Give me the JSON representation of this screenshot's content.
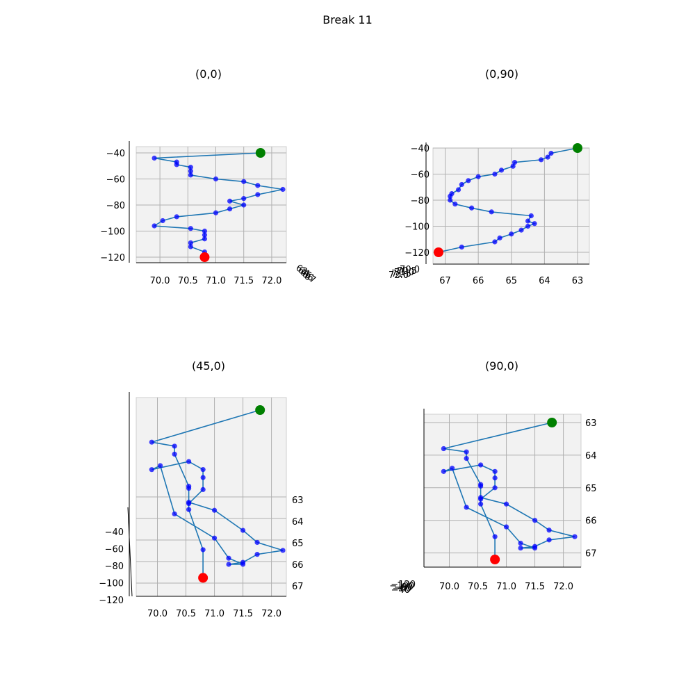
{
  "figure": {
    "title": "Break 11"
  },
  "chart_data": {
    "type": "scatter",
    "plot_kind": "3d line with point markers, shown from four view angles",
    "points": [
      {
        "x": 71.8,
        "y": 63.0,
        "z": -40
      },
      {
        "x": 69.9,
        "y": 63.8,
        "z": -44
      },
      {
        "x": 70.3,
        "y": 63.9,
        "z": -47
      },
      {
        "x": 70.3,
        "y": 64.1,
        "z": -49
      },
      {
        "x": 70.55,
        "y": 64.9,
        "z": -51
      },
      {
        "x": 70.55,
        "y": 64.95,
        "z": -54
      },
      {
        "x": 70.55,
        "y": 65.3,
        "z": -57
      },
      {
        "x": 71.0,
        "y": 65.5,
        "z": -60
      },
      {
        "x": 71.5,
        "y": 66.0,
        "z": -62
      },
      {
        "x": 71.75,
        "y": 66.3,
        "z": -65
      },
      {
        "x": 72.2,
        "y": 66.5,
        "z": -68
      },
      {
        "x": 71.75,
        "y": 66.6,
        "z": -72
      },
      {
        "x": 71.5,
        "y": 66.8,
        "z": -75
      },
      {
        "x": 71.25,
        "y": 66.85,
        "z": -77
      },
      {
        "x": 71.5,
        "y": 66.85,
        "z": -80
      },
      {
        "x": 71.25,
        "y": 66.7,
        "z": -83
      },
      {
        "x": 71.0,
        "y": 66.2,
        "z": -86
      },
      {
        "x": 70.3,
        "y": 65.6,
        "z": -89
      },
      {
        "x": 70.05,
        "y": 64.4,
        "z": -92
      },
      {
        "x": 69.9,
        "y": 64.5,
        "z": -96
      },
      {
        "x": 70.55,
        "y": 64.3,
        "z": -98
      },
      {
        "x": 70.8,
        "y": 64.5,
        "z": -100
      },
      {
        "x": 70.8,
        "y": 64.7,
        "z": -103
      },
      {
        "x": 70.8,
        "y": 65.0,
        "z": -106
      },
      {
        "x": 70.55,
        "y": 65.35,
        "z": -109
      },
      {
        "x": 70.55,
        "y": 65.5,
        "z": -112
      },
      {
        "x": 70.8,
        "y": 66.5,
        "z": -116
      },
      {
        "x": 70.8,
        "y": 67.2,
        "z": -120
      }
    ],
    "start_marker": {
      "color": "#008000",
      "index": 0
    },
    "end_marker": {
      "color": "#ff0000",
      "index": 27
    },
    "colors": {
      "line": "#1f77b4",
      "points": "#0000ff",
      "start": "#008000",
      "end": "#ff0000",
      "pane": "#f2f2f2"
    },
    "x_ticks": [
      "70.0",
      "70.5",
      "71.0",
      "71.5",
      "72.0"
    ],
    "y_ticks": [
      "63",
      "64",
      "65",
      "66",
      "67"
    ],
    "z_ticks": [
      "−40",
      "−60",
      "−80",
      "−100",
      "−120"
    ],
    "views": [
      {
        "title": "(0,0)",
        "elev": 0,
        "azim": 0,
        "edge_labels": [
          "63",
          "64",
          "65",
          "66",
          "67"
        ]
      },
      {
        "title": "(0,90)",
        "elev": 0,
        "azim": 90,
        "edge_labels": [
          "70.0",
          "70.5",
          "71.0",
          "71.5",
          "72.0"
        ]
      },
      {
        "title": "(45,0)",
        "elev": 45,
        "azim": 0,
        "edge_labels": []
      },
      {
        "title": "(90,0)",
        "elev": 90,
        "azim": 0,
        "edge_labels": [
          "−120",
          "−100",
          "−80",
          "−60",
          "−40"
        ]
      }
    ]
  }
}
